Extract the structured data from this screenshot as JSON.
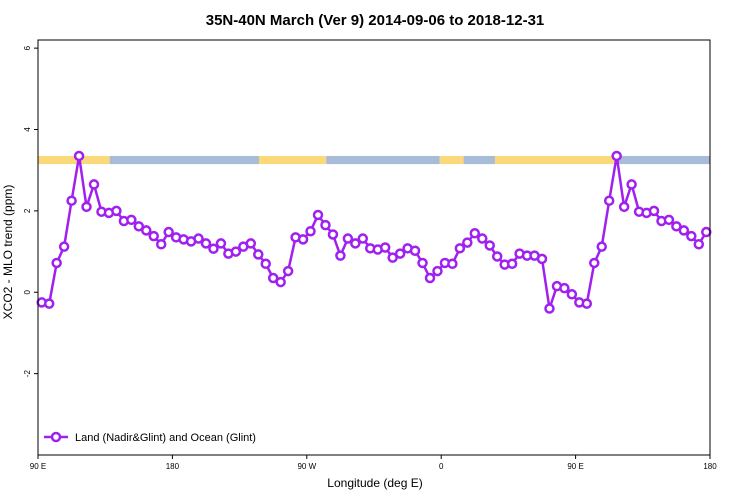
{
  "chart_data": {
    "type": "line",
    "title": "35N-40N March (Ver 9)   2014-09-06 to 2018-12-31",
    "xlabel": "Longitude (deg E)",
    "ylabel": "XCO2 - MLO trend (ppm)",
    "xlim": [
      90,
      540
    ],
    "ylim": [
      -4,
      6.2
    ],
    "x_ticks": [
      {
        "value": 90,
        "label": "90 E"
      },
      {
        "value": 180,
        "label": "180"
      },
      {
        "value": 270,
        "label": "90 W"
      },
      {
        "value": 360,
        "label": "0"
      },
      {
        "value": 450,
        "label": "90 E"
      },
      {
        "value": 540,
        "label": "180"
      }
    ],
    "y_ticks": [
      {
        "value": -2,
        "label": "-2"
      },
      {
        "value": 0,
        "label": "0"
      },
      {
        "value": 2,
        "label": "2"
      },
      {
        "value": 4,
        "label": "4"
      },
      {
        "value": 6,
        "label": "6"
      }
    ],
    "legend": {
      "position": "bottom-left",
      "entries": [
        "Land (Nadir&Glint) and Ocean (Glint)"
      ]
    },
    "colors": {
      "series": "#a020f0",
      "land": "#fbd97a",
      "ocean": "#a8bcd8"
    },
    "surface_strip": {
      "y_range": [
        3.15,
        3.35
      ],
      "segments": [
        {
          "type": "land",
          "x0": 90,
          "x1": 138
        },
        {
          "type": "ocean",
          "x0": 138,
          "x1": 238
        },
        {
          "type": "land",
          "x0": 238,
          "x1": 283
        },
        {
          "type": "ocean",
          "x0": 283,
          "x1": 359
        },
        {
          "type": "land",
          "x0": 359,
          "x1": 375
        },
        {
          "type": "ocean",
          "x0": 375,
          "x1": 396
        },
        {
          "type": "land",
          "x0": 396,
          "x1": 478
        },
        {
          "type": "ocean",
          "x0": 478,
          "x1": 540
        }
      ]
    },
    "series": [
      {
        "name": "Land (Nadir&Glint) and Ocean (Glint)",
        "x": [
          92.5,
          97.5,
          102.5,
          107.5,
          112.5,
          117.5,
          122.5,
          127.5,
          132.5,
          137.5,
          142.5,
          147.5,
          152.5,
          157.5,
          162.5,
          167.5,
          172.5,
          177.5,
          182.5,
          187.5,
          192.5,
          197.5,
          202.5,
          207.5,
          212.5,
          217.5,
          222.5,
          227.5,
          232.5,
          237.5,
          242.5,
          247.5,
          252.5,
          257.5,
          262.5,
          267.5,
          272.5,
          277.5,
          282.5,
          287.5,
          292.5,
          297.5,
          302.5,
          307.5,
          312.5,
          317.5,
          322.5,
          327.5,
          332.5,
          337.5,
          342.5,
          347.5,
          352.5,
          357.5,
          362.5,
          367.5,
          372.5,
          377.5,
          382.5,
          387.5,
          392.5,
          397.5,
          402.5,
          407.5,
          412.5,
          417.5,
          422.5,
          427.5,
          432.5,
          437.5,
          442.5,
          447.5,
          452.5,
          457.5,
          462.5,
          467.5,
          472.5,
          477.5,
          482.5,
          487.5,
          492.5,
          497.5,
          502.5,
          507.5,
          512.5,
          517.5,
          522.5,
          527.5,
          532.5,
          537.5
        ],
        "y": [
          -0.25,
          -0.28,
          0.72,
          1.12,
          2.25,
          3.35,
          2.1,
          2.65,
          1.98,
          1.95,
          2.0,
          1.75,
          1.78,
          1.62,
          1.52,
          1.38,
          1.18,
          1.48,
          1.35,
          1.3,
          1.25,
          1.32,
          1.2,
          1.07,
          1.2,
          0.95,
          1.0,
          1.12,
          1.2,
          0.93,
          0.7,
          0.35,
          0.25,
          0.52,
          1.35,
          1.3,
          1.5,
          1.9,
          1.65,
          1.42,
          0.9,
          1.32,
          1.2,
          1.32,
          1.08,
          1.05,
          1.1,
          0.85,
          0.95,
          1.08,
          1.02,
          0.72,
          0.35,
          0.52,
          0.72,
          0.7,
          1.08,
          1.22,
          1.45,
          1.32,
          1.15,
          0.88,
          0.68,
          0.7,
          0.95,
          0.9,
          0.9,
          0.82,
          -0.4,
          0.15,
          0.1,
          -0.05,
          -0.25,
          -0.28,
          0.72,
          1.12,
          2.25,
          3.35,
          2.1,
          2.65,
          1.98,
          1.95,
          2.0,
          1.75,
          1.78,
          1.62,
          1.52,
          1.38,
          1.18,
          1.48
        ]
      }
    ]
  }
}
